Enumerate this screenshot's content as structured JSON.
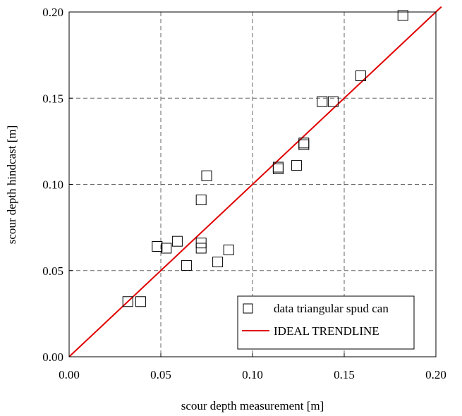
{
  "chart_data": {
    "type": "scatter",
    "xlabel": "scour depth measurement [m]",
    "ylabel": "scour depth hindcast [m]",
    "xlim": [
      0,
      0.2
    ],
    "ylim": [
      0,
      0.2
    ],
    "x_ticks": [
      "0.00",
      "0.05",
      "0.10",
      "0.15",
      "0.20"
    ],
    "y_ticks": [
      "0.00",
      "0.05",
      "0.10",
      "0.15",
      "0.20"
    ],
    "x_tick_values": [
      0,
      0.05,
      0.1,
      0.15,
      0.2
    ],
    "y_tick_values": [
      0,
      0.05,
      0.1,
      0.15,
      0.2
    ],
    "grid": true,
    "legend_position": "bottom-right",
    "series": [
      {
        "name": "data triangular spud can",
        "kind": "markers",
        "marker": "square",
        "color": "#000000",
        "points": [
          [
            0.032,
            0.032
          ],
          [
            0.039,
            0.032
          ],
          [
            0.048,
            0.064
          ],
          [
            0.053,
            0.063
          ],
          [
            0.059,
            0.067
          ],
          [
            0.064,
            0.053
          ],
          [
            0.072,
            0.091
          ],
          [
            0.072,
            0.066
          ],
          [
            0.072,
            0.063
          ],
          [
            0.075,
            0.105
          ],
          [
            0.081,
            0.055
          ],
          [
            0.087,
            0.062
          ],
          [
            0.114,
            0.11
          ],
          [
            0.114,
            0.109
          ],
          [
            0.124,
            0.111
          ],
          [
            0.128,
            0.124
          ],
          [
            0.128,
            0.123
          ],
          [
            0.138,
            0.148
          ],
          [
            0.144,
            0.148
          ],
          [
            0.159,
            0.163
          ],
          [
            0.182,
            0.198
          ]
        ]
      },
      {
        "name": "IDEAL TRENDLINE",
        "kind": "line",
        "color": "#e00000",
        "points": [
          [
            0,
            0
          ],
          [
            0.203,
            0.203
          ]
        ]
      }
    ]
  }
}
